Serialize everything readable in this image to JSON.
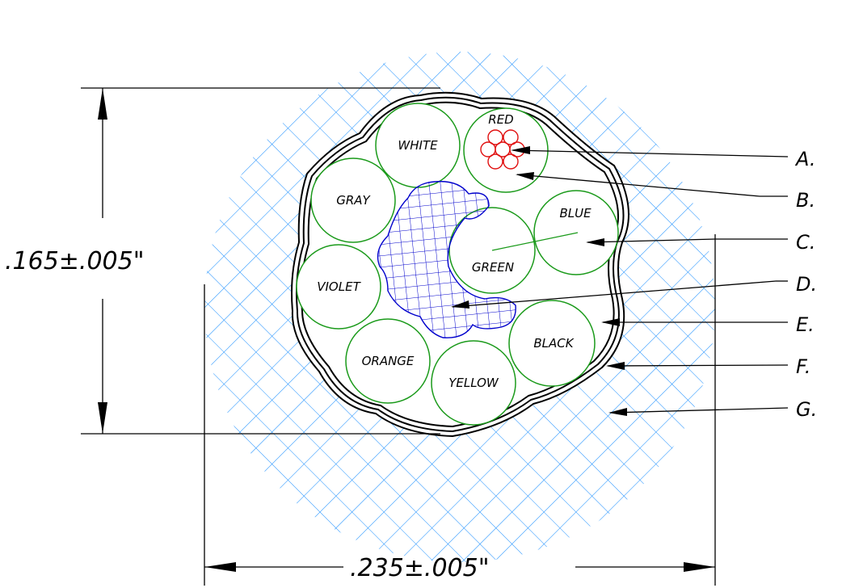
{
  "dimensions": {
    "height_label": ".165±.005\"",
    "width_label": ".235±.005\""
  },
  "conductors": [
    {
      "label": "RED"
    },
    {
      "label": "WHITE"
    },
    {
      "label": "GRAY"
    },
    {
      "label": "BLUE"
    },
    {
      "label": "GREEN"
    },
    {
      "label": "VIOLET"
    },
    {
      "label": "BLACK"
    },
    {
      "label": "ORANGE"
    },
    {
      "label": "YELLOW"
    }
  ],
  "callouts": [
    "A.",
    "B.",
    "C.",
    "D.",
    "E.",
    "F.",
    "G."
  ],
  "colors": {
    "jacket_hatch": "#1e90ff",
    "conductor_outline": "#1a9a1a",
    "filler_hatch": "#0000cc",
    "strand_outline": "#e01010",
    "line": "#000000"
  }
}
